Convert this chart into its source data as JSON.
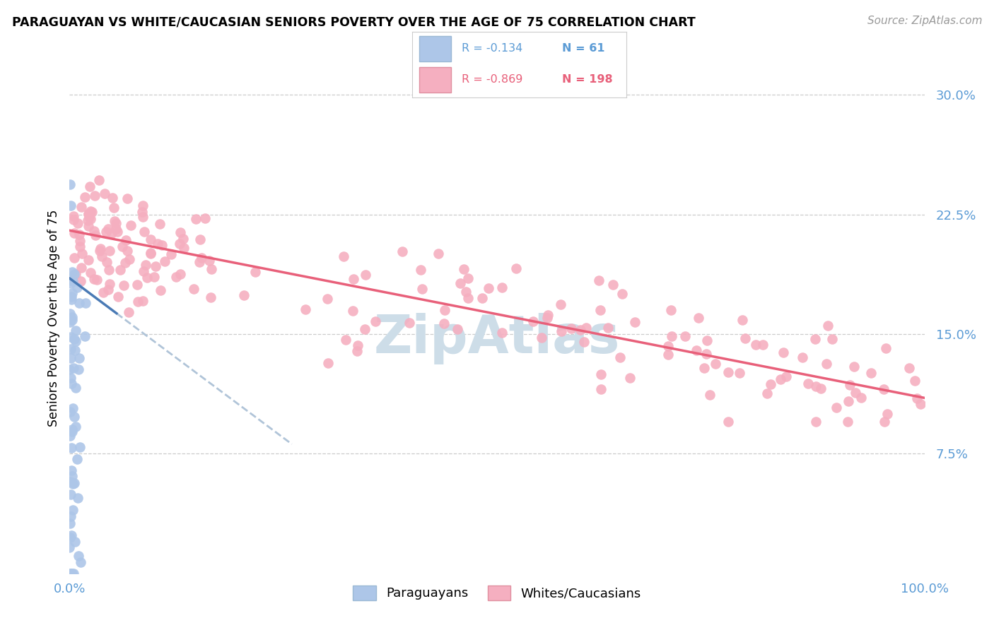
{
  "title": "PARAGUAYAN VS WHITE/CAUCASIAN SENIORS POVERTY OVER THE AGE OF 75 CORRELATION CHART",
  "source": "Source: ZipAtlas.com",
  "ylabel": "Seniors Poverty Over the Age of 75",
  "xlim": [
    0,
    1.0
  ],
  "ylim": [
    0,
    0.32
  ],
  "ytick_vals": [
    0.075,
    0.15,
    0.225,
    0.3
  ],
  "xtick_vals": [
    0.0,
    0.25,
    0.5,
    0.75,
    1.0
  ],
  "xtick_labels": [
    "0.0%",
    "",
    "",
    "",
    "100.0%"
  ],
  "legend_paraguayan_R": "-0.134",
  "legend_paraguayan_N": "61",
  "legend_white_R": "-0.869",
  "legend_white_N": "198",
  "color_paraguayan_fill": "#adc6e8",
  "color_white_fill": "#f5afc0",
  "color_paraguayan_line": "#4a7ab5",
  "color_white_line": "#e8607a",
  "color_paraguayan_line_dash": "#b0c4d8",
  "tick_color": "#5b9bd5",
  "watermark_color": "#cddde8",
  "grid_color": "#cccccc"
}
